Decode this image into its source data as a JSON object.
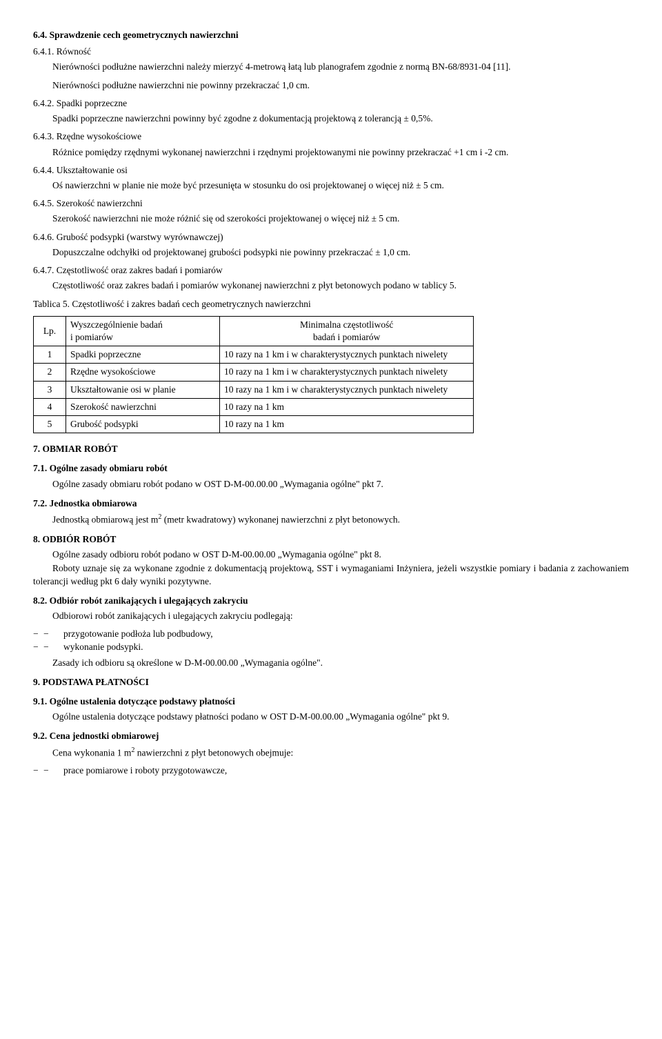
{
  "s6_4": {
    "title": "6.4. Sprawdzenie cech geometrycznych nawierzchni",
    "s6_4_1": {
      "title": "6.4.1. Równość",
      "p1": "Nierówności podłużne nawierzchni należy mierzyć 4-metrową łatą lub planografem zgodnie z normą BN-68/8931-04 [11].",
      "p2": "Nierówności podłużne nawierzchni nie powinny przekraczać 1,0 cm."
    },
    "s6_4_2": {
      "title": "6.4.2. Spadki poprzeczne",
      "p1": "Spadki poprzeczne nawierzchni powinny być zgodne z dokumentacją projektową z tolerancją ± 0,5%."
    },
    "s6_4_3": {
      "title": "6.4.3. Rzędne wysokościowe",
      "p1": "Różnice pomiędzy rzędnymi wykonanej nawierzchni i rzędnymi projektowanymi nie powinny przekraczać +1 cm i -2 cm."
    },
    "s6_4_4": {
      "title": "6.4.4. Ukształtowanie osi",
      "p1": "Oś nawierzchni w planie nie może być przesunięta w stosunku do osi projektowanej o więcej niż ± 5 cm."
    },
    "s6_4_5": {
      "title": "6.4.5. Szerokość nawierzchni",
      "p1": "Szerokość nawierzchni nie może różnić się od szerokości projektowanej o więcej niż ± 5 cm."
    },
    "s6_4_6": {
      "title": "6.4.6. Grubość podsypki (warstwy wyrównawczej)",
      "p1": "Dopuszczalne odchyłki od projektowanej grubości podsypki nie powinny przekraczać ± 1,0 cm."
    },
    "s6_4_7": {
      "title": "6.4.7. Częstotliwość oraz zakres badań i pomiarów",
      "p1": "Częstotliwość oraz zakres badań i pomiarów wykonanej nawierzchni z płyt betonowych podano w tablicy 5."
    }
  },
  "table5": {
    "caption": "Tablica 5. Częstotliwość i zakres badań cech geometrycznych nawierzchni",
    "head_lp": "Lp.",
    "head_name_l1": "Wyszczególnienie badań",
    "head_name_l2": "i pomiarów",
    "head_freq_l1": "Minimalna częstotliwość",
    "head_freq_l2": "badań i pomiarów",
    "rows": [
      {
        "lp": "1",
        "name": "Spadki poprzeczne",
        "freq": "10 razy na 1 km i w charakterystycznych punktach niwelety"
      },
      {
        "lp": "2",
        "name": "Rzędne wysokościowe",
        "freq": "10 razy na 1 km i w charakterystycznych punktach niwelety"
      },
      {
        "lp": "3",
        "name": "Ukształtowanie osi w planie",
        "freq": "10 razy na 1 km i w charakterystycznych punktach niwelety"
      },
      {
        "lp": "4",
        "name": "Szerokość nawierzchni",
        "freq": "10 razy na 1 km"
      },
      {
        "lp": "5",
        "name": "Grubość podsypki",
        "freq": "10 razy na 1 km"
      }
    ]
  },
  "s7": {
    "title": "7. OBMIAR ROBÓT",
    "s7_1": {
      "title": "7.1. Ogólne zasady obmiaru robót",
      "p1": "Ogólne zasady obmiaru robót podano w OST D-M-00.00.00 „Wymagania ogólne\" pkt 7."
    },
    "s7_2": {
      "title": "7.2. Jednostka obmiarowa",
      "p1_pre": "Jednostką obmiarową jest m",
      "p1_sup": "2",
      "p1_post": " (metr kwadratowy) wykonanej nawierzchni z płyt betonowych."
    }
  },
  "s8": {
    "title": "8. ODBIÓR ROBÓT",
    "p1": "Ogólne zasady odbioru robót podano w OST D-M-00.00.00 „Wymagania ogólne\" pkt 8.",
    "p2": "Roboty uznaje się za wykonane zgodnie z dokumentacją projektową, SST i wymaganiami Inżyniera, jeżeli wszystkie pomiary i badania z zachowaniem tolerancji według pkt 6 dały wyniki pozytywne.",
    "s8_2": {
      "title": "8.2. Odbiór robót zanikających i ulegających  zakryciu",
      "p1": "Odbiorowi robót zanikających i ulegających zakryciu podlegają:",
      "items": [
        "przygotowanie podłoża lub podbudowy,",
        "wykonanie podsypki."
      ],
      "p2": "Zasady ich odbioru są określone w D-M-00.00.00 „Wymagania ogólne\"."
    }
  },
  "s9": {
    "title": "9. PODSTAWA PŁATNOŚCI",
    "s9_1": {
      "title": "9.1. Ogólne ustalenia dotyczące podstawy płatności",
      "p1": "Ogólne ustalenia dotyczące podstawy płatności podano w OST D-M-00.00.00 „Wymagania ogólne\" pkt 9."
    },
    "s9_2": {
      "title": "9.2. Cena jednostki obmiarowej",
      "p1_pre": "Cena wykonania 1 m",
      "p1_sup": "2",
      "p1_post": " nawierzchni z płyt betonowych obejmuje:",
      "items": [
        "prace pomiarowe i roboty przygotowawcze,"
      ]
    }
  }
}
